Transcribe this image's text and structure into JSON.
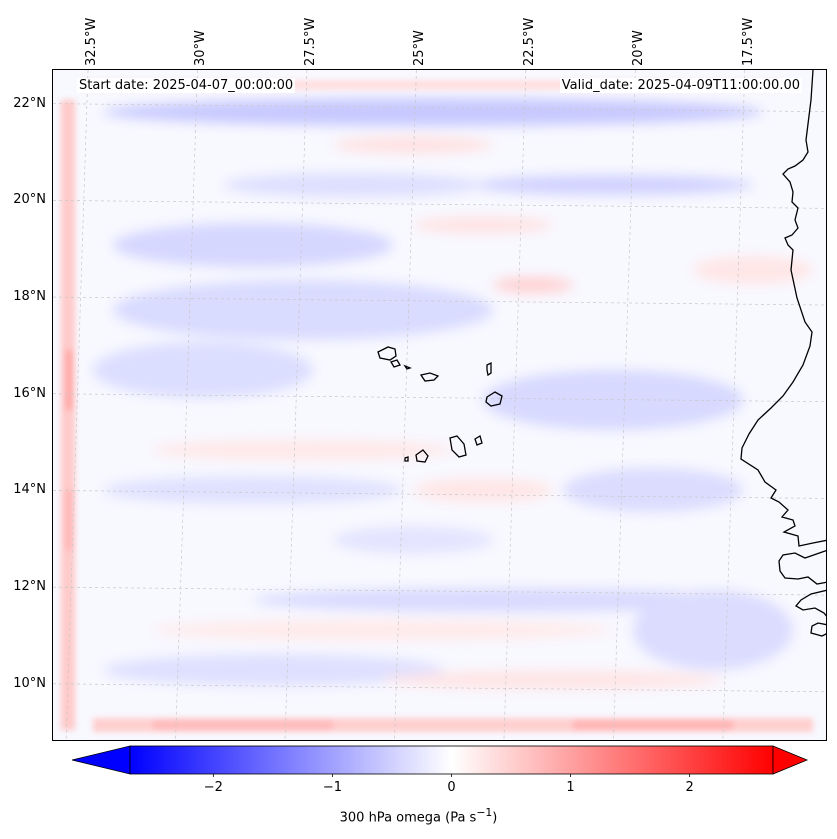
{
  "map": {
    "title_left": "Start date: 2025-04-07_00:00:00",
    "title_right": "Valid_date: 2025-04-09T11:00:00.00",
    "extent": {
      "lon_min": -33.3,
      "lon_max": -15.6,
      "lat_min": 8.9,
      "lat_max": 22.8
    },
    "longitude_ticks": [
      {
        "value": -32.5,
        "label": "32.5°W"
      },
      {
        "value": -30,
        "label": "30°W"
      },
      {
        "value": -27.5,
        "label": "27.5°W"
      },
      {
        "value": -25,
        "label": "25°W"
      },
      {
        "value": -22.5,
        "label": "22.5°W"
      },
      {
        "value": -20,
        "label": "20°W"
      },
      {
        "value": -17.5,
        "label": "17.5°W"
      }
    ],
    "latitude_ticks": [
      {
        "value": 22,
        "label": "22°N"
      },
      {
        "value": 20,
        "label": "20°N"
      },
      {
        "value": 18,
        "label": "18°N"
      },
      {
        "value": 16,
        "label": "16°N"
      },
      {
        "value": 14,
        "label": "14°N"
      },
      {
        "value": 12,
        "label": "12°N"
      },
      {
        "value": 10,
        "label": "10°N"
      }
    ],
    "features": [
      "Cape Verde islands",
      "West African coastline"
    ]
  },
  "colorbar": {
    "label": "300 hPa omega (Pa s",
    "label_sup": "−1",
    "label_end": ")",
    "vmin": -2.7,
    "vmax": 2.7,
    "ticks": [
      {
        "value": -2,
        "label": "−2"
      },
      {
        "value": -1,
        "label": "−1"
      },
      {
        "value": 0,
        "label": "0"
      },
      {
        "value": 1,
        "label": "1"
      },
      {
        "value": 2,
        "label": "2"
      }
    ],
    "colormap": "bwr",
    "color_low": "#0000ff",
    "color_mid": "#ffffff",
    "color_high": "#ff0000"
  }
}
